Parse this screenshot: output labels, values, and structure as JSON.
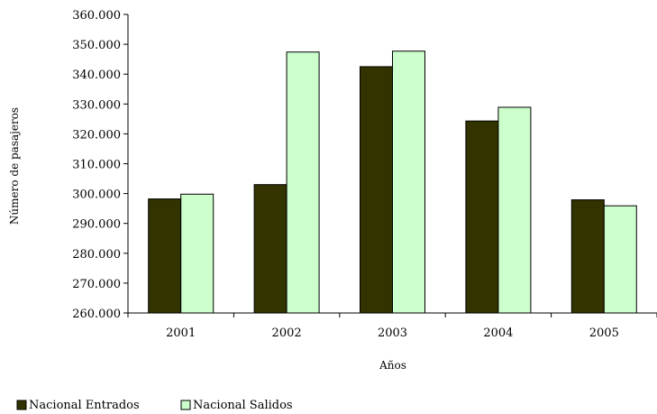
{
  "chart_data": {
    "type": "bar",
    "categories": [
      "2001",
      "2002",
      "2003",
      "2004",
      "2005"
    ],
    "series": [
      {
        "name": "Nacional Entrados",
        "color": "#333300",
        "values": [
          298200,
          303000,
          342500,
          324300,
          297900
        ]
      },
      {
        "name": "Nacional Salidos",
        "color": "#ccffcc",
        "values": [
          299800,
          347400,
          347700,
          328900,
          295900
        ]
      }
    ],
    "xlabel": "Años",
    "ylabel": "Número de pasajeros",
    "ylim": [
      260000,
      360000
    ],
    "ytick_values": [
      260000,
      270000,
      280000,
      290000,
      300000,
      310000,
      320000,
      330000,
      340000,
      350000,
      360000
    ],
    "ytick_labels": [
      "260.000",
      "270.000",
      "280.000",
      "290.000",
      "300.000",
      "310.000",
      "320.000",
      "330.000",
      "340.000",
      "350.000",
      "360.000"
    ],
    "grid": false,
    "legend_position": "bottom-left"
  }
}
